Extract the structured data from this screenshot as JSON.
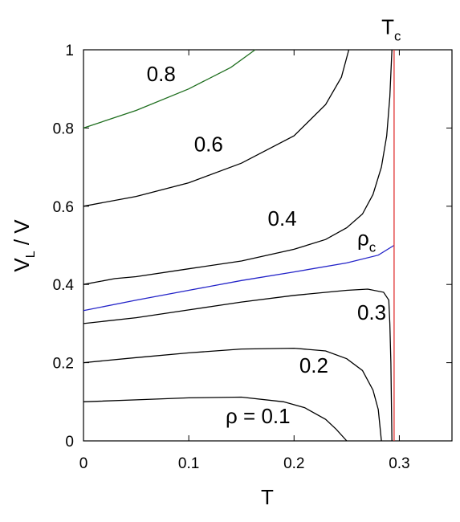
{
  "chart_data": {
    "type": "line",
    "title": "",
    "xlabel": "T",
    "ylabel": {
      "main": "V",
      "sub": "L",
      "rest": " / V"
    },
    "xlim": [
      0,
      0.35
    ],
    "ylim": [
      0,
      1
    ],
    "xticks": [
      0,
      0.1,
      0.2,
      0.3
    ],
    "xtick_labels": [
      "0",
      "0.1",
      "0.2",
      "0.3"
    ],
    "yticks": [
      0,
      0.2,
      0.4,
      0.6,
      0.8,
      1
    ],
    "ytick_labels": [
      "0",
      "0.2",
      "0.4",
      "0.6",
      "0.8",
      "1"
    ],
    "grid": false,
    "series": [
      {
        "key": "rho01",
        "color": "#000000",
        "label": "ρ = 0.1",
        "points": [
          [
            0,
            0.1
          ],
          [
            0.05,
            0.105
          ],
          [
            0.1,
            0.11
          ],
          [
            0.15,
            0.112
          ],
          [
            0.19,
            0.1
          ],
          [
            0.21,
            0.085
          ],
          [
            0.23,
            0.055
          ],
          [
            0.24,
            0.03
          ],
          [
            0.25,
            0.0
          ]
        ]
      },
      {
        "key": "rho02",
        "color": "#000000",
        "label": "0.2",
        "points": [
          [
            0,
            0.2
          ],
          [
            0.05,
            0.213
          ],
          [
            0.1,
            0.225
          ],
          [
            0.15,
            0.235
          ],
          [
            0.2,
            0.237
          ],
          [
            0.23,
            0.23
          ],
          [
            0.25,
            0.21
          ],
          [
            0.265,
            0.18
          ],
          [
            0.275,
            0.13
          ],
          [
            0.28,
            0.08
          ],
          [
            0.283,
            0.0
          ]
        ]
      },
      {
        "key": "rho03",
        "color": "#000000",
        "label": "0.3",
        "points": [
          [
            0,
            0.3
          ],
          [
            0.05,
            0.315
          ],
          [
            0.1,
            0.335
          ],
          [
            0.15,
            0.355
          ],
          [
            0.2,
            0.372
          ],
          [
            0.25,
            0.385
          ],
          [
            0.27,
            0.388
          ],
          [
            0.285,
            0.38
          ],
          [
            0.29,
            0.36
          ],
          [
            0.291,
            0.3
          ],
          [
            0.292,
            0.2
          ],
          [
            0.293,
            0.0
          ]
        ]
      },
      {
        "key": "rhoc",
        "color": "#2323c8",
        "label": "ρ_c",
        "points": [
          [
            0,
            0.333
          ],
          [
            0.05,
            0.36
          ],
          [
            0.1,
            0.385
          ],
          [
            0.15,
            0.41
          ],
          [
            0.2,
            0.432
          ],
          [
            0.25,
            0.455
          ],
          [
            0.28,
            0.475
          ],
          [
            0.295,
            0.5
          ]
        ]
      },
      {
        "key": "rho04",
        "color": "#000000",
        "label": "0.4",
        "points": [
          [
            0,
            0.4
          ],
          [
            0.03,
            0.415
          ],
          [
            0.05,
            0.42
          ],
          [
            0.1,
            0.44
          ],
          [
            0.15,
            0.46
          ],
          [
            0.2,
            0.49
          ],
          [
            0.23,
            0.515
          ],
          [
            0.25,
            0.545
          ],
          [
            0.265,
            0.58
          ],
          [
            0.275,
            0.63
          ],
          [
            0.283,
            0.7
          ],
          [
            0.288,
            0.78
          ],
          [
            0.291,
            0.88
          ],
          [
            0.293,
            1.0
          ]
        ]
      },
      {
        "key": "rho06",
        "color": "#000000",
        "label": "0.6",
        "points": [
          [
            0,
            0.6
          ],
          [
            0.05,
            0.625
          ],
          [
            0.1,
            0.66
          ],
          [
            0.15,
            0.71
          ],
          [
            0.2,
            0.78
          ],
          [
            0.23,
            0.86
          ],
          [
            0.245,
            0.93
          ],
          [
            0.252,
            1.0
          ]
        ]
      },
      {
        "key": "rho08",
        "color": "#1e6e1e",
        "label": "0.8",
        "points": [
          [
            0,
            0.8
          ],
          [
            0.05,
            0.845
          ],
          [
            0.1,
            0.9
          ],
          [
            0.14,
            0.955
          ],
          [
            0.163,
            1.0
          ]
        ]
      },
      {
        "key": "tc_line",
        "color": "#e03030",
        "label": "T_c",
        "points": [
          [
            0.295,
            0.0
          ],
          [
            0.295,
            1.0
          ]
        ]
      }
    ],
    "annotations": [
      {
        "key": "label_08",
        "text": "0.8",
        "x": 0.06,
        "y": 0.92
      },
      {
        "key": "label_06",
        "text": "0.6",
        "x": 0.105,
        "y": 0.74
      },
      {
        "key": "label_04",
        "text": "0.4",
        "x": 0.175,
        "y": 0.55
      },
      {
        "key": "label_03",
        "text": "0.3",
        "x": 0.26,
        "y": 0.31
      },
      {
        "key": "label_02",
        "text": "0.2",
        "x": 0.205,
        "y": 0.175
      },
      {
        "key": "label_01",
        "text": "ρ = 0.1",
        "x": 0.135,
        "y": 0.045
      }
    ],
    "rho_c_label": {
      "main": "ρ",
      "sub": "c",
      "x": 0.26,
      "y": 0.5
    },
    "tc_label": {
      "main": "T",
      "sub": "c",
      "x": 0.283,
      "y": 1.04
    }
  }
}
